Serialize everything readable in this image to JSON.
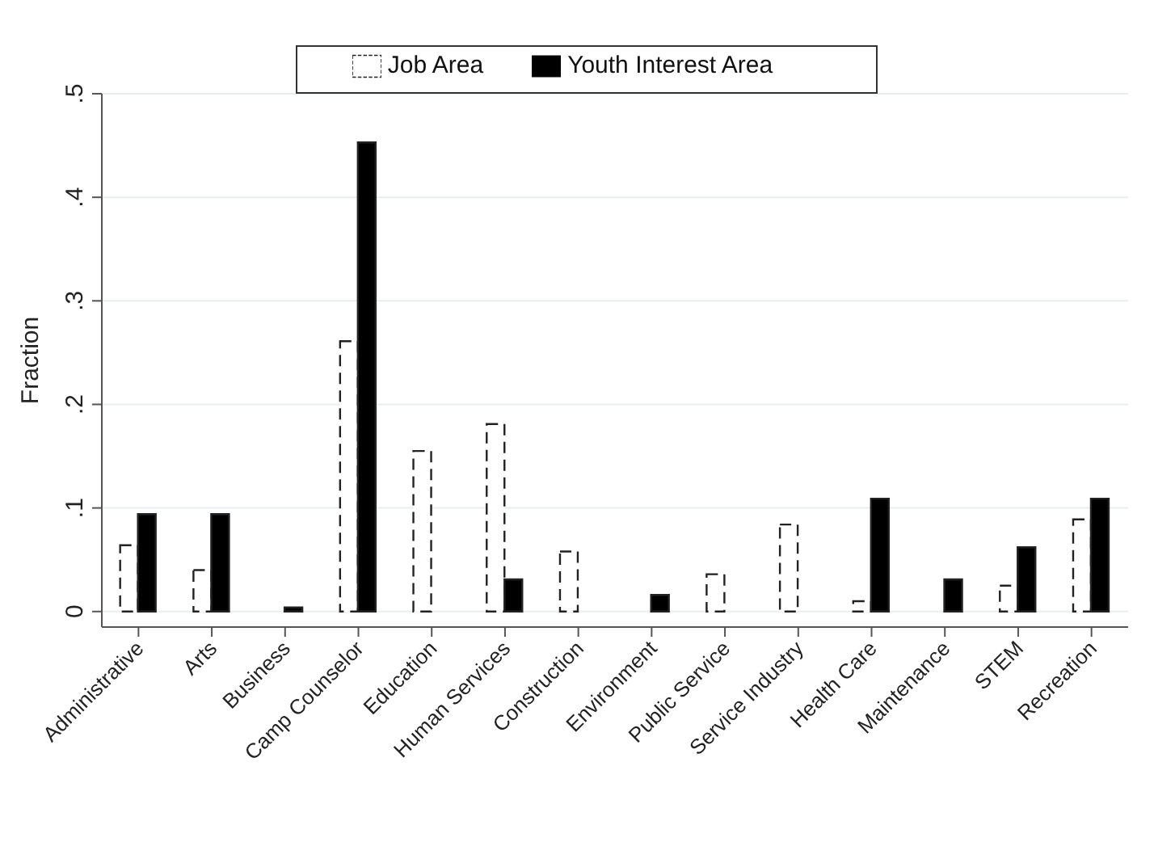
{
  "chart_data": {
    "type": "bar",
    "ylabel": "Fraction",
    "categories": [
      "Administrative",
      "Arts",
      "Business",
      "Camp Counselor",
      "Education",
      "Human Services",
      "Construction",
      "Environment",
      "Public Service",
      "Service Industry",
      "Health Care",
      "Maintenance",
      "STEM",
      "Recreation"
    ],
    "series": [
      {
        "name": "Job Area",
        "color": "#ffffff",
        "line_style": "dashed",
        "values": [
          0.064,
          0.04,
          0,
          0.261,
          0.155,
          0.181,
          0.058,
          0,
          0.036,
          0.084,
          0.01,
          0,
          0.025,
          0.089
        ]
      },
      {
        "name": "Youth Interest Area",
        "color": "#000000",
        "values": [
          0.094,
          0.094,
          0.004,
          0.453,
          0,
          0.031,
          0,
          0.016,
          0,
          0,
          0.109,
          0.031,
          0.062,
          0.109
        ]
      }
    ],
    "ylim": [
      -0.015,
      0.5
    ],
    "yticks": [
      0,
      {
        "value": 0.1,
        "label": ".1"
      },
      {
        "value": 0.2,
        "label": ".2"
      },
      {
        "value": 0.3,
        "label": ".3"
      },
      {
        "value": 0.4,
        "label": ".4"
      },
      {
        "value": 0.5,
        "label": ".5"
      }
    ],
    "grid": "y",
    "legend": "top"
  }
}
